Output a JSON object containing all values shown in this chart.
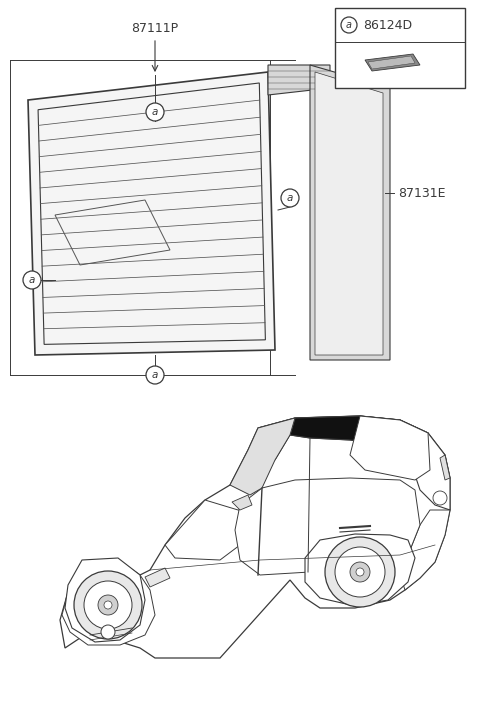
{
  "bg_color": "#ffffff",
  "part_87111P_label": "87111P",
  "part_87131E_label": "87131E",
  "part_86124D_label": "86124D",
  "callout_label": "a",
  "line_color": "#3a3a3a",
  "defroster_color": "#555555",
  "seal_fill": "#d8d8d8",
  "glass_fill": "#f5f5f5",
  "car_line_color": "#3a3a3a",
  "car_glass_fill": "#111111",
  "box_color": "#3a3a3a",
  "clip_fill": "#888888"
}
